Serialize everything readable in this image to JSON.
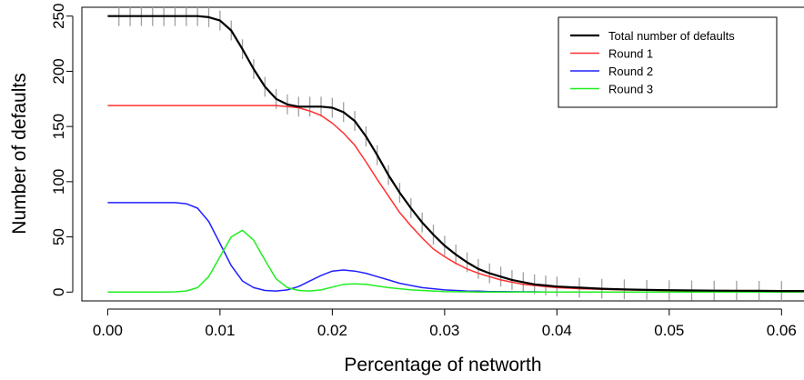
{
  "chart_data": {
    "type": "line",
    "title": "",
    "xlabel": "Percentage of networth",
    "ylabel": "Number of defaults",
    "xlim": [
      -0.0023,
      0.062
    ],
    "ylim": [
      -8,
      258
    ],
    "x_ticks": [
      0.0,
      0.01,
      0.02,
      0.03,
      0.04,
      0.05,
      0.06
    ],
    "x_tick_labels": [
      "0.00",
      "0.01",
      "0.02",
      "0.03",
      "0.04",
      "0.05",
      "0.06"
    ],
    "y_ticks": [
      0,
      50,
      100,
      150,
      200,
      250
    ],
    "y_tick_labels": [
      "0",
      "50",
      "100",
      "150",
      "200",
      "250"
    ],
    "grid": false,
    "legend_position": "top-right",
    "x": [
      0.0,
      0.001,
      0.002,
      0.003,
      0.004,
      0.005,
      0.006,
      0.007,
      0.008,
      0.009,
      0.01,
      0.011,
      0.012,
      0.013,
      0.014,
      0.015,
      0.016,
      0.017,
      0.018,
      0.019,
      0.02,
      0.021,
      0.022,
      0.023,
      0.024,
      0.025,
      0.026,
      0.027,
      0.028,
      0.029,
      0.03,
      0.031,
      0.032,
      0.033,
      0.034,
      0.035,
      0.036,
      0.037,
      0.038,
      0.039,
      0.04,
      0.042,
      0.044,
      0.046,
      0.048,
      0.05,
      0.052,
      0.054,
      0.056,
      0.058,
      0.06,
      0.062
    ],
    "series": [
      {
        "name": "Total number of defaults",
        "color": "#000000",
        "width": 2.2,
        "values": [
          250,
          250,
          250,
          250,
          250,
          250,
          250,
          250,
          250,
          249,
          246,
          237,
          220,
          202,
          186,
          175,
          170,
          168,
          168,
          168,
          167,
          163,
          155,
          141,
          124,
          106,
          90,
          76,
          63,
          52,
          42,
          34,
          27,
          21,
          17,
          14,
          11,
          9,
          7,
          6,
          5,
          4,
          3,
          2.5,
          2,
          1.7,
          1.5,
          1.3,
          1.2,
          1.1,
          1,
          1
        ]
      },
      {
        "name": "Round 1",
        "color": "#ff3030",
        "width": 1.5,
        "values": [
          169,
          169,
          169,
          169,
          169,
          169,
          169,
          169,
          169,
          169,
          169,
          169,
          169,
          169,
          169,
          169,
          168,
          167,
          164,
          160,
          153,
          144,
          133,
          118,
          102,
          87,
          72,
          60,
          49,
          39,
          32,
          26,
          21,
          17,
          14,
          11,
          9,
          7,
          6,
          5,
          4,
          3,
          2.5,
          2,
          1.6,
          1.4,
          1.2,
          1.1,
          1,
          1,
          1,
          1
        ]
      },
      {
        "name": "Round 2",
        "color": "#2020ff",
        "width": 1.5,
        "values": [
          81,
          81,
          81,
          81,
          81,
          81,
          81,
          80,
          76,
          64,
          44,
          24,
          10,
          4,
          1.5,
          1,
          2,
          5,
          10,
          15,
          19,
          20,
          19,
          17,
          14,
          11,
          8,
          6,
          4,
          3,
          2,
          1.5,
          1,
          0.8,
          0.5,
          0.4,
          0.3,
          0.2,
          0.2,
          0.1,
          0.1,
          0,
          0,
          0,
          0,
          0,
          0,
          0,
          0,
          0,
          0,
          0
        ]
      },
      {
        "name": "Round 3",
        "color": "#20ee20",
        "width": 1.5,
        "values": [
          0,
          0,
          0,
          0,
          0,
          0,
          0.2,
          1,
          4,
          14,
          32,
          50,
          56,
          47,
          29,
          12,
          4,
          1.5,
          1,
          2,
          4.5,
          7,
          7.5,
          7,
          5.5,
          4,
          3,
          2,
          1.5,
          1,
          0.5,
          0.3,
          0.2,
          0.1,
          0,
          0,
          0,
          0,
          0,
          0,
          0,
          0,
          0,
          0,
          0,
          0,
          0,
          0,
          0,
          0,
          0,
          0
        ]
      }
    ],
    "error_bars": {
      "series": "Total number of defaults",
      "color": "#a0a0a0",
      "half_height": 9,
      "x": [
        0.001,
        0.002,
        0.003,
        0.004,
        0.005,
        0.006,
        0.007,
        0.008,
        0.009,
        0.01,
        0.011,
        0.012,
        0.013,
        0.014,
        0.015,
        0.016,
        0.017,
        0.018,
        0.019,
        0.02,
        0.021,
        0.022,
        0.023,
        0.024,
        0.025,
        0.026,
        0.027,
        0.028,
        0.029,
        0.03,
        0.031,
        0.032,
        0.033,
        0.034,
        0.035,
        0.036,
        0.037,
        0.038,
        0.039,
        0.04,
        0.042,
        0.044,
        0.046,
        0.048,
        0.05,
        0.052,
        0.054,
        0.056,
        0.058,
        0.06
      ]
    }
  }
}
